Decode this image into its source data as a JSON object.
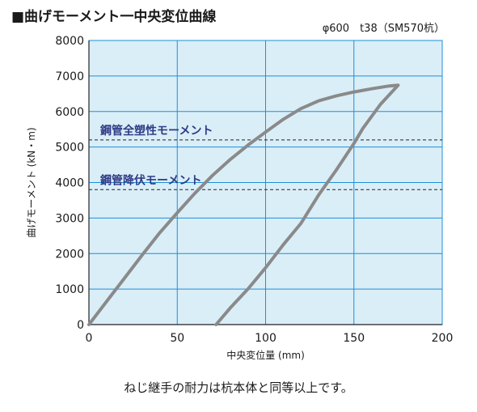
{
  "header": {
    "title": "■曲げモーメント一中央変位曲線",
    "spec": "φ600　t38（SM570杭）"
  },
  "caption": "ねじ継手の耐力は杭本体と同等以上です。",
  "colors": {
    "plot_bg": "#daeef8",
    "grid": "#1f8fd6",
    "curve": "#8a8a8a",
    "ref_label": "#2f3b86",
    "ref_line": "#222222"
  },
  "chart_data": {
    "type": "line",
    "xlabel": "中央変位量 (mm)",
    "ylabel": "曲げモーメント (kN・m)",
    "xlim": [
      0,
      200
    ],
    "ylim": [
      0,
      8000
    ],
    "xticks": [
      0,
      50,
      100,
      150,
      200
    ],
    "yticks": [
      0,
      1000,
      2000,
      3000,
      4000,
      5000,
      6000,
      7000,
      8000
    ],
    "grid": true,
    "series": [
      {
        "points": [
          [
            0,
            0
          ],
          [
            10,
            650
          ],
          [
            20,
            1300
          ],
          [
            30,
            1950
          ],
          [
            40,
            2580
          ],
          [
            50,
            3150
          ],
          [
            60,
            3700
          ],
          [
            70,
            4200
          ],
          [
            80,
            4650
          ],
          [
            90,
            5050
          ],
          [
            100,
            5420
          ],
          [
            110,
            5780
          ],
          [
            120,
            6080
          ],
          [
            130,
            6300
          ],
          [
            140,
            6440
          ],
          [
            150,
            6550
          ],
          [
            160,
            6640
          ],
          [
            170,
            6720
          ],
          [
            175,
            6740
          ],
          [
            165,
            6200
          ],
          [
            155,
            5520
          ],
          [
            150,
            5100
          ],
          [
            140,
            4350
          ],
          [
            130,
            3650
          ],
          [
            120,
            2850
          ],
          [
            110,
            2250
          ],
          [
            100,
            1600
          ],
          [
            90,
            1000
          ],
          [
            80,
            470
          ],
          [
            72,
            0
          ]
        ]
      }
    ],
    "reference_lines": [
      {
        "label": "鋼管全塑性モーメント",
        "y": 5200
      },
      {
        "label": "鋼管降伏モーメント",
        "y": 3800
      }
    ]
  }
}
